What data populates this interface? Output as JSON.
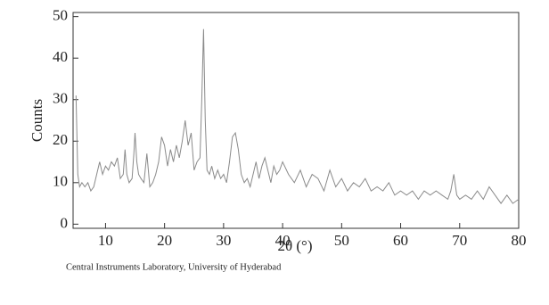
{
  "chart_data": {
    "type": "line",
    "xlabel": "2θ (°)",
    "ylabel": "Counts",
    "footnote": "Central Instruments Laboratory, University of Hyderabad",
    "x": [
      5,
      5.3,
      5.6,
      6,
      6.5,
      7,
      7.5,
      8,
      8.5,
      9,
      9.5,
      10,
      10.5,
      11,
      11.5,
      12,
      12.5,
      13,
      13.3,
      13.6,
      14,
      14.5,
      14.8,
      15,
      15.3,
      15.6,
      16,
      16.5,
      17,
      17.5,
      18,
      18.5,
      19,
      19.5,
      20,
      20.5,
      21,
      21.5,
      22,
      22.5,
      23,
      23.5,
      24,
      24.5,
      25,
      25.5,
      26,
      26.3,
      26.6,
      26.9,
      27.2,
      27.6,
      28,
      28.5,
      29,
      29.5,
      30,
      30.5,
      31,
      31.5,
      32,
      32.5,
      33,
      33.5,
      34,
      34.5,
      35,
      35.5,
      36,
      36.5,
      37,
      37.5,
      38,
      38.5,
      39,
      39.5,
      40,
      41,
      42,
      43,
      44,
      45,
      46,
      47,
      48,
      49,
      50,
      51,
      52,
      53,
      54,
      55,
      56,
      57,
      58,
      59,
      60,
      61,
      62,
      63,
      64,
      65,
      66,
      67,
      68,
      68.5,
      69,
      69.5,
      70,
      71,
      72,
      73,
      74,
      75,
      76,
      77,
      78,
      79,
      80
    ],
    "series": [
      {
        "color": "#8a8a8a",
        "values": [
          31,
          12,
          9,
          10,
          9,
          10,
          8,
          9,
          12,
          15,
          12,
          14,
          13,
          15,
          14,
          16,
          11,
          12,
          18,
          12,
          10,
          11,
          17,
          22,
          15,
          12,
          11,
          10,
          17,
          9,
          10,
          12,
          15,
          21,
          19,
          14,
          18,
          15,
          19,
          16,
          20,
          25,
          19,
          22,
          13,
          15,
          16,
          30,
          47,
          25,
          13,
          12,
          14,
          11,
          13,
          11,
          12,
          10,
          15,
          21,
          22,
          18,
          12,
          10,
          11,
          9,
          12,
          15,
          11,
          14,
          16,
          13,
          10,
          14,
          12,
          13,
          15,
          12,
          10,
          13,
          9,
          12,
          11,
          8,
          13,
          9,
          11,
          8,
          10,
          9,
          11,
          8,
          9,
          8,
          10,
          7,
          8,
          7,
          8,
          6,
          8,
          7,
          8,
          7,
          6,
          8,
          12,
          7,
          6,
          7,
          6,
          8,
          6,
          9,
          7,
          5,
          7,
          5,
          6
        ]
      }
    ],
    "xlim": [
      4.5,
      80
    ],
    "xticks": [
      10,
      20,
      30,
      40,
      50,
      60,
      70,
      80
    ],
    "ylim": [
      -1,
      51
    ],
    "yticks": [
      0,
      10,
      20,
      30,
      40,
      50
    ]
  }
}
